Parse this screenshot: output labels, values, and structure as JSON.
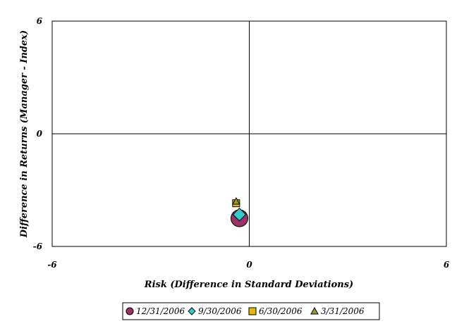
{
  "chart_data": {
    "type": "scatter",
    "title": "",
    "xlabel": "Risk (Difference in Standard Deviations)",
    "ylabel": "Difference in Returns (Manager - Index)",
    "xlim": [
      -6,
      6
    ],
    "ylim": [
      -6,
      6
    ],
    "x_ticks": [
      "-6",
      "0",
      "6"
    ],
    "y_ticks": [
      "6",
      "0",
      "-6"
    ],
    "grid": false,
    "legend_position": "bottom",
    "series": [
      {
        "name": "12/31/2006",
        "marker": "circle",
        "color": "#993366",
        "x": [
          -0.3
        ],
        "y": [
          -4.5
        ]
      },
      {
        "name": "9/30/2006",
        "marker": "diamond",
        "color": "#33CCCC",
        "x": [
          -0.3
        ],
        "y": [
          -4.3
        ]
      },
      {
        "name": "6/30/2006",
        "marker": "square",
        "color": "#E6B800",
        "x": [
          -0.4
        ],
        "y": [
          -3.7
        ]
      },
      {
        "name": "3/31/2006",
        "marker": "triangle",
        "color": "#999933",
        "x": [
          -0.4
        ],
        "y": [
          -3.6
        ]
      }
    ]
  }
}
